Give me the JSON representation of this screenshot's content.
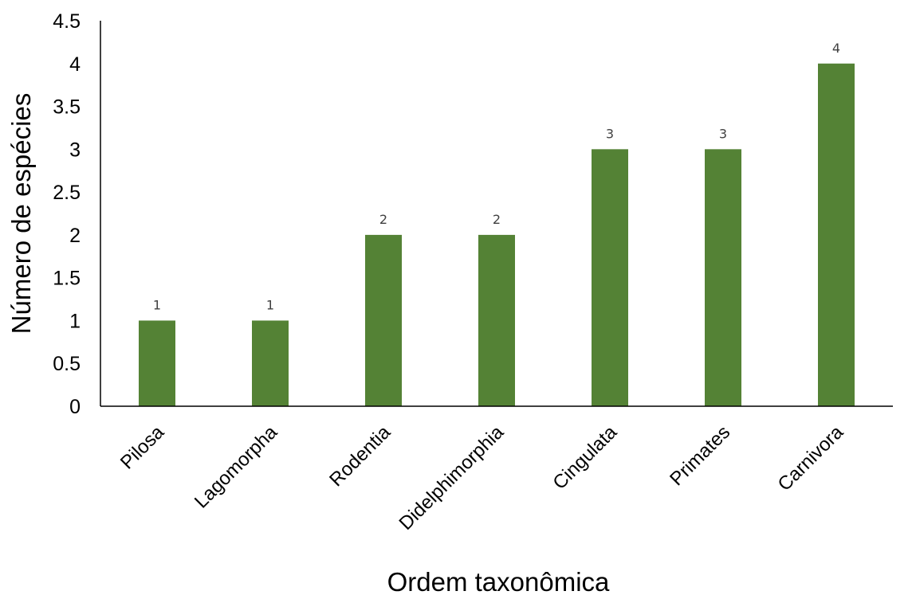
{
  "chart_data": {
    "type": "bar",
    "title": "",
    "xlabel": "Ordem taxonômica",
    "ylabel": "Número de espécies",
    "categories": [
      "Pilosa",
      "Lagomorpha",
      "Rodentia",
      "Didelphimorphia",
      "Cingulata",
      "Primates",
      "Carnivora"
    ],
    "values": [
      1,
      1,
      2,
      2,
      3,
      3,
      4
    ],
    "data_labels": [
      "1",
      "1",
      "2",
      "2",
      "3",
      "3",
      "4"
    ],
    "ylim": [
      0,
      4.5
    ],
    "yticks": [
      "0",
      "0.5",
      "1",
      "1.5",
      "2",
      "2.5",
      "3",
      "3.5",
      "4",
      "4.5"
    ],
    "grid": false,
    "legend": "none",
    "bar_color": "#548235"
  }
}
